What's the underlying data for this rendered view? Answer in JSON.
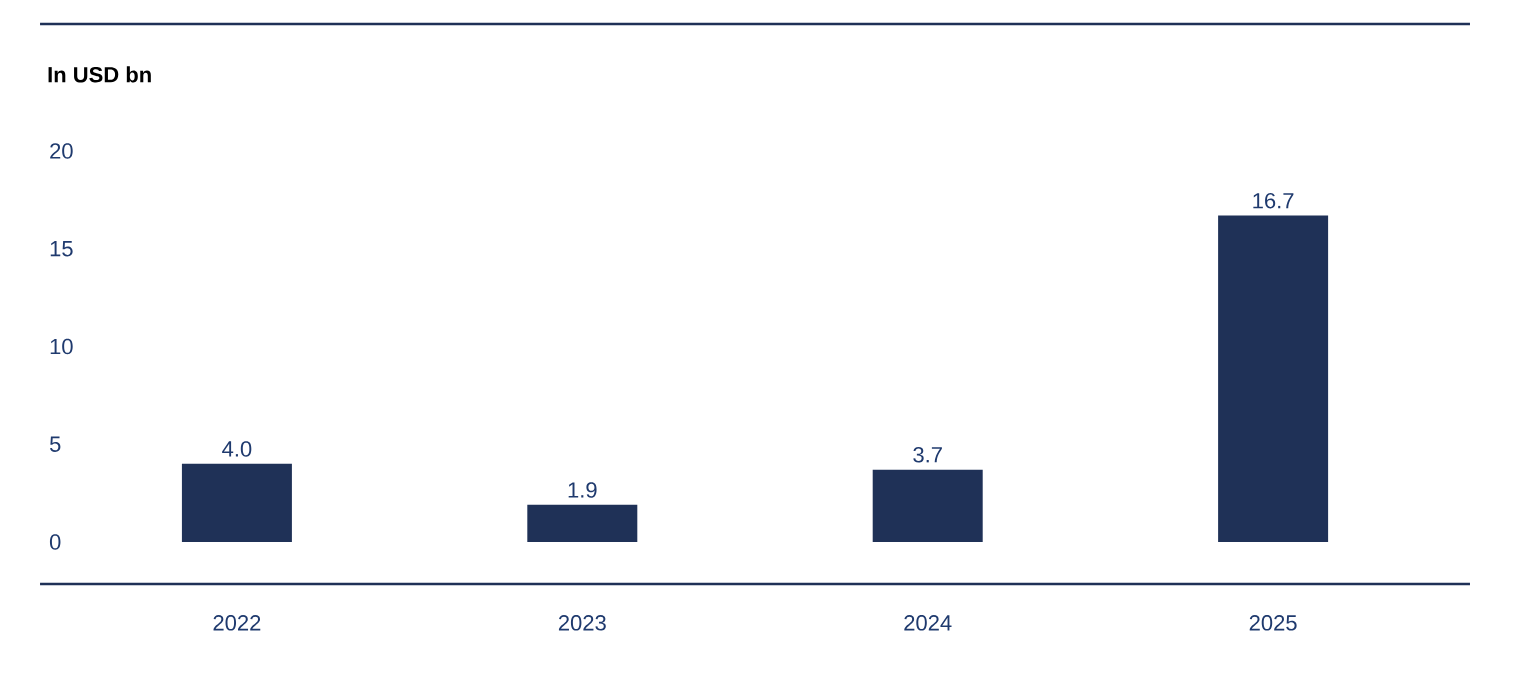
{
  "chart_data": {
    "type": "bar",
    "ylabel": "In USD bn",
    "categories": [
      "2022",
      "2023",
      "2024",
      "2025"
    ],
    "values": [
      4.0,
      1.9,
      3.7,
      16.7
    ],
    "color": "#1f3157",
    "value_labels": [
      "4.0",
      "1.9",
      "3.7",
      "16.7"
    ],
    "ylim": [
      -2.15,
      26.5
    ],
    "yticks": [
      0,
      5,
      10,
      15,
      20
    ]
  }
}
